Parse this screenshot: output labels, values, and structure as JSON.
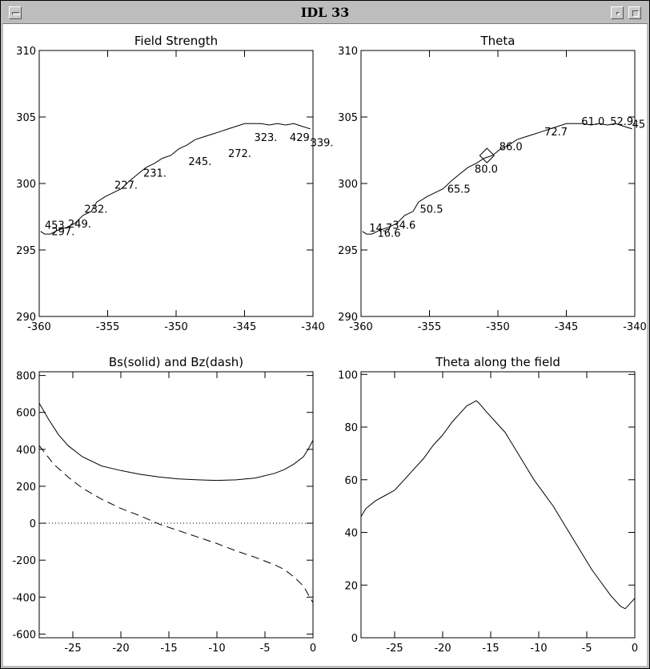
{
  "window": {
    "title": "IDL 33"
  },
  "chart_data": [
    {
      "type": "line",
      "title": "Field Strength",
      "xlim": [
        -360,
        -340
      ],
      "ylim": [
        290,
        310
      ],
      "xticks": [
        "-360",
        "-355",
        "-350",
        "-345",
        "-340"
      ],
      "yticks": [
        "290",
        "295",
        "300",
        "305",
        "310"
      ],
      "x": [
        -359.9,
        -359.6,
        -359.2,
        -358.6,
        -358.0,
        -357.4,
        -356.8,
        -356.2,
        -355.8,
        -355.2,
        -354.6,
        -354.0,
        -353.4,
        -352.8,
        -352.2,
        -351.6,
        -351.0,
        -350.4,
        -349.8,
        -349.2,
        -348.6,
        -348.0,
        -347.4,
        -346.8,
        -346.2,
        -345.6,
        -345.0,
        -344.4,
        -343.8,
        -343.2,
        -342.6,
        -342.0,
        -341.4,
        -340.8,
        -340.2
      ],
      "y": [
        296.4,
        296.2,
        296.2,
        296.5,
        296.7,
        297.0,
        297.6,
        297.9,
        298.6,
        299.0,
        299.3,
        299.6,
        300.2,
        300.7,
        301.2,
        301.5,
        301.9,
        302.1,
        302.6,
        302.9,
        303.3,
        303.5,
        303.7,
        303.9,
        304.1,
        304.3,
        304.5,
        304.5,
        304.5,
        304.4,
        304.5,
        304.4,
        304.5,
        304.3,
        304.1
      ],
      "annotations": [
        {
          "text": "453.",
          "x": -359.6,
          "y": 296.6
        },
        {
          "text": "297.",
          "x": -359.1,
          "y": 296.1
        },
        {
          "text": "249.",
          "x": -357.9,
          "y": 296.7
        },
        {
          "text": "232.",
          "x": -356.7,
          "y": 297.8
        },
        {
          "text": "227.",
          "x": -354.5,
          "y": 299.6
        },
        {
          "text": "231.",
          "x": -352.4,
          "y": 300.5
        },
        {
          "text": "245.",
          "x": -349.1,
          "y": 301.4
        },
        {
          "text": "272.",
          "x": -346.2,
          "y": 302.0
        },
        {
          "text": "323.",
          "x": -344.3,
          "y": 303.2
        },
        {
          "text": "429.",
          "x": -341.7,
          "y": 303.2
        },
        {
          "text": "339.",
          "x": -340.2,
          "y": 302.8
        }
      ]
    },
    {
      "type": "line",
      "title": "Theta",
      "xlim": [
        -360,
        -340
      ],
      "ylim": [
        290,
        310
      ],
      "xticks": [
        "-360",
        "-355",
        "-350",
        "-345",
        "-340"
      ],
      "yticks": [
        "290",
        "295",
        "300",
        "305",
        "310"
      ],
      "x": [
        -359.9,
        -359.6,
        -359.2,
        -358.6,
        -358.0,
        -357.4,
        -356.8,
        -356.2,
        -355.8,
        -355.2,
        -354.6,
        -354.0,
        -353.4,
        -352.8,
        -352.2,
        -351.6,
        -351.0,
        -350.4,
        -349.8,
        -349.2,
        -348.6,
        -348.0,
        -347.4,
        -346.8,
        -346.2,
        -345.6,
        -345.0,
        -344.4,
        -343.8,
        -343.2,
        -342.6,
        -342.0,
        -341.4,
        -340.8,
        -340.2
      ],
      "y": [
        296.4,
        296.2,
        296.2,
        296.5,
        296.7,
        297.0,
        297.6,
        297.9,
        298.6,
        299.0,
        299.3,
        299.6,
        300.2,
        300.7,
        301.2,
        301.5,
        301.9,
        302.1,
        302.6,
        302.9,
        303.3,
        303.5,
        303.7,
        303.9,
        304.1,
        304.3,
        304.5,
        304.5,
        304.5,
        304.4,
        304.5,
        304.4,
        304.5,
        304.3,
        304.1
      ],
      "marker": {
        "shape": "diamond",
        "x": -350.8,
        "y": 302.1
      },
      "annotations": [
        {
          "text": "14.7",
          "x": -359.4,
          "y": 296.4
        },
        {
          "text": "16.6",
          "x": -358.8,
          "y": 296.0
        },
        {
          "text": "34.6",
          "x": -357.7,
          "y": 296.6
        },
        {
          "text": "50.5",
          "x": -355.7,
          "y": 297.8
        },
        {
          "text": "65.5",
          "x": -353.7,
          "y": 299.3
        },
        {
          "text": "80.0",
          "x": -351.7,
          "y": 300.8
        },
        {
          "text": "86.0",
          "x": -349.9,
          "y": 302.5
        },
        {
          "text": "72.7",
          "x": -346.6,
          "y": 303.6
        },
        {
          "text": "61.0",
          "x": -343.9,
          "y": 304.4
        },
        {
          "text": "52.9",
          "x": -341.8,
          "y": 304.4
        },
        {
          "text": "45",
          "x": -340.2,
          "y": 304.2
        }
      ]
    },
    {
      "type": "line",
      "title": "Bs(solid) and Bz(dash)",
      "xlim": [
        -28.5,
        0
      ],
      "ylim": [
        -620,
        820
      ],
      "xticks": [
        "-25",
        "-20",
        "-15",
        "-10",
        "-5",
        "0"
      ],
      "xtickvals": [
        -25,
        -20,
        -15,
        -10,
        -5,
        0
      ],
      "yticks": [
        "-600",
        "-400",
        "-200",
        "0",
        "200",
        "400",
        "600",
        "800"
      ],
      "ytickvals": [
        -600,
        -400,
        -200,
        0,
        200,
        400,
        600,
        800
      ],
      "zero_line": "dotted",
      "series": [
        {
          "style": "solid",
          "x": [
            -28.5,
            -27.5,
            -26.5,
            -25.5,
            -24,
            -22,
            -20,
            -18,
            -16,
            -14,
            -12,
            -10,
            -8,
            -6,
            -4,
            -3,
            -2,
            -1,
            -0.5,
            0
          ],
          "y": [
            650,
            560,
            480,
            420,
            360,
            310,
            285,
            265,
            250,
            240,
            235,
            232,
            235,
            245,
            270,
            290,
            320,
            360,
            400,
            450
          ]
        },
        {
          "style": "dashed",
          "x": [
            -28.5,
            -27,
            -25.5,
            -24,
            -22,
            -20,
            -18,
            -16,
            -14,
            -12,
            -10,
            -8,
            -6,
            -4,
            -3,
            -2,
            -1,
            0
          ],
          "y": [
            420,
            320,
            250,
            190,
            130,
            80,
            40,
            -5,
            -40,
            -75,
            -110,
            -150,
            -185,
            -225,
            -250,
            -290,
            -340,
            -430
          ]
        }
      ]
    },
    {
      "type": "line",
      "title": "Theta along the field",
      "xlim": [
        -28.5,
        0
      ],
      "ylim": [
        0,
        101
      ],
      "xticks": [
        "-25",
        "-20",
        "-15",
        "-10",
        "-5",
        "0"
      ],
      "xtickvals": [
        -25,
        -20,
        -15,
        -10,
        -5,
        0
      ],
      "yticks": [
        "0",
        "20",
        "40",
        "60",
        "80",
        "100"
      ],
      "ytickvals": [
        0,
        20,
        40,
        60,
        80,
        100
      ],
      "x": [
        -28.5,
        -28,
        -27,
        -26,
        -25,
        -24,
        -23,
        -22,
        -21,
        -20,
        -19,
        -18,
        -17.5,
        -17,
        -16.5,
        -16.2,
        -15.5,
        -14.5,
        -13.5,
        -12.5,
        -11.5,
        -10.5,
        -9.5,
        -8.5,
        -7.5,
        -6.5,
        -5.5,
        -4.5,
        -3.5,
        -2.5,
        -1.5,
        -1,
        -0.5,
        0
      ],
      "y": [
        46,
        49,
        52,
        54,
        56,
        60,
        64,
        68,
        73,
        77,
        82,
        86,
        88,
        89,
        90,
        89,
        86,
        82,
        78,
        72,
        66,
        60,
        55,
        50,
        44,
        38,
        32,
        26,
        21,
        16,
        12,
        11,
        13,
        15
      ]
    }
  ]
}
